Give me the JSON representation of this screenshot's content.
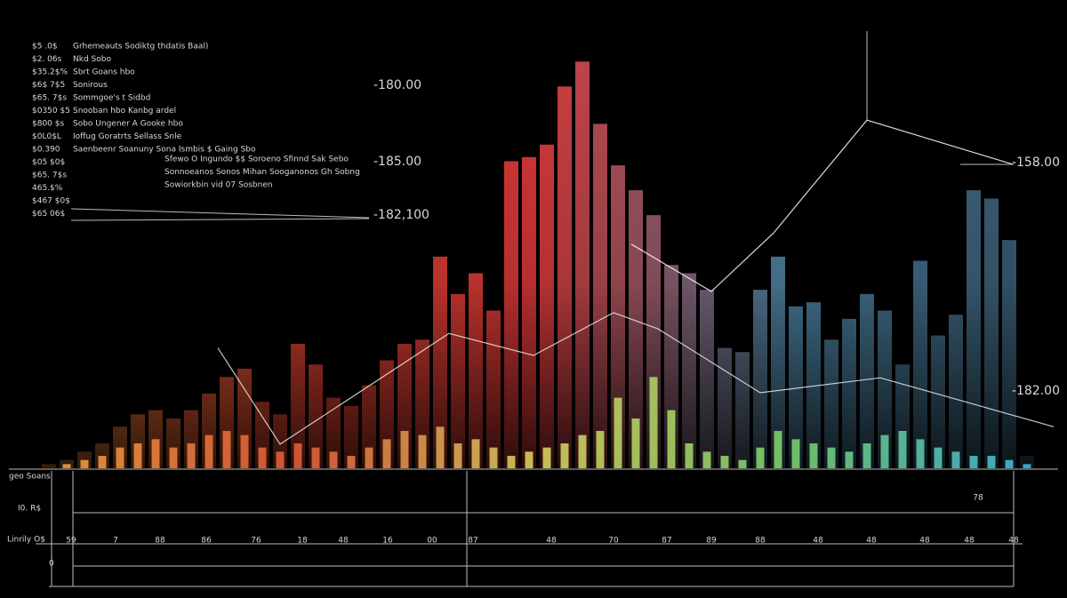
{
  "chart_data": [
    {
      "type": "bar",
      "colors": [
        "#f28a2e",
        "#e8442f",
        "#e23a3a",
        "#4f87a8",
        "#3b5f78"
      ],
      "categories": [
        null,
        null,
        null,
        null,
        null,
        null,
        null,
        null,
        null,
        null,
        null,
        null,
        null,
        null,
        null,
        null,
        null,
        null,
        null,
        null,
        null,
        null,
        null,
        null,
        null,
        null,
        null,
        null,
        null,
        null,
        null,
        null,
        null,
        null,
        null,
        null,
        null,
        null,
        null,
        null,
        null,
        null,
        null,
        null,
        null,
        null,
        null,
        null,
        null,
        null,
        null,
        null,
        null,
        null,
        null,
        null
      ],
      "values": [
        1,
        2,
        4,
        6,
        10,
        13,
        14,
        12,
        14,
        18,
        22,
        24,
        16,
        13,
        30,
        25,
        17,
        15,
        20,
        26,
        30,
        31,
        51,
        42,
        47,
        38,
        74,
        75,
        78,
        92,
        98,
        83,
        73,
        67,
        61,
        49,
        47,
        43,
        29,
        28,
        43,
        51,
        39,
        40,
        31,
        36,
        42,
        38,
        25,
        50,
        32,
        37,
        67,
        65,
        55,
        3
      ],
      "xlim": [
        0,
        57
      ],
      "ylim": [
        0,
        100
      ]
    },
    {
      "type": "bar",
      "colors": [
        "#f0a040",
        "#e05a3a",
        "#d8d060",
        "#7ccf6a",
        "#3fb7d8"
      ],
      "categories": [
        null,
        null,
        null,
        null,
        null,
        null,
        null,
        null,
        null,
        null,
        null,
        null,
        null,
        null,
        null,
        null,
        null,
        null,
        null,
        null,
        null,
        null,
        null,
        null,
        null,
        null,
        null,
        null,
        null,
        null,
        null,
        null,
        null,
        null,
        null,
        null,
        null,
        null,
        null,
        null,
        null,
        null,
        null,
        null,
        null,
        null,
        null,
        null,
        null,
        null,
        null,
        null,
        null,
        null,
        null,
        null
      ],
      "values": [
        0,
        1,
        2,
        3,
        5,
        6,
        7,
        5,
        6,
        8,
        9,
        8,
        5,
        4,
        6,
        5,
        4,
        3,
        5,
        7,
        9,
        8,
        10,
        6,
        7,
        5,
        3,
        4,
        5,
        6,
        8,
        9,
        17,
        12,
        22,
        14,
        6,
        4,
        3,
        2,
        5,
        9,
        7,
        6,
        5,
        4,
        6,
        8,
        9,
        7,
        5,
        4,
        3,
        3,
        2,
        1
      ],
      "xlim": [
        0,
        57
      ],
      "ylim": [
        0,
        100
      ]
    },
    {
      "type": "line",
      "color": "#e8e8e8",
      "x": [
        10,
        13.5,
        23,
        27.75,
        32.25,
        34.75,
        40.5,
        47.25,
        57
      ],
      "values": [
        29,
        5.8,
        32.5,
        27.2,
        37.5,
        33.6,
        18.2,
        21.8,
        10
      ],
      "xlim": [
        0,
        57
      ],
      "ylim": [
        0,
        100
      ]
    },
    {
      "type": "line",
      "color": "#ffffff",
      "x": [
        33.25,
        37.75,
        41.25,
        46.5,
        54.75
      ],
      "values": [
        54,
        42.6,
        56.7,
        83.9,
        73.2
      ],
      "xlim": [
        0,
        57
      ],
      "ylim": [
        0,
        100
      ]
    }
  ],
  "annotations": [
    "-180.00",
    "-185.00",
    "-182,100",
    "-158.00",
    "-182.00"
  ],
  "legend_text": [
    "$5 .0$",
    "$2. 06s",
    "$35.2$%",
    "$6$ 7$5",
    "$65. 7$s",
    "$0350 $5",
    "$800 $s",
    "$0L0$L",
    "$0.390",
    "$05 $0$",
    "$65. 7$s",
    "465.$%",
    "$467 $0$",
    "$65 06$"
  ],
  "legend_desc": [
    "Grhemeauts Sodiktg thdatis Baal)",
    "Nkd Sobo",
    "Sbrt Goans hbo",
    "Sonirous",
    "Sommgoe's t Sidbd",
    "Snooban hbo Kanbg ardel",
    "Sobo Ungener A Gooke hbo",
    "Ioffug Goratrts Sellass Snle",
    "Saenbeenr Soanuny Sona Ismbis $ Gaing Sbo",
    "Sfewo O Ingundo $$ Soroeno Sfinnd  Sak Sebo",
    "Sonnoeanos Sonos  Mihan Sooganonos Gh Sobng",
    "Sowiorkbin vid   07 Sosbnen"
  ],
  "bottom_labels": [
    "59",
    "7",
    "88",
    "86",
    "76",
    "18",
    "48",
    "16",
    "00",
    "87",
    "48",
    "70",
    "87",
    "89",
    "88",
    "48",
    "48",
    "48",
    "48",
    "48",
    "78"
  ],
  "side_labels": [
    "geo Soans",
    "I0. R$",
    "Linrily O$",
    "0"
  ]
}
